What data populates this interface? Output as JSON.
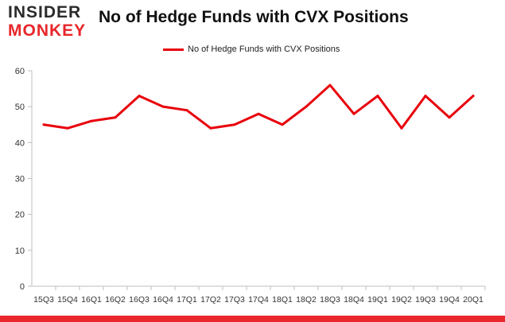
{
  "logo": {
    "line1": "INSIDER",
    "line2": "MONKEY"
  },
  "chart_data": {
    "type": "line",
    "title": "No of Hedge Funds with CVX Positions",
    "xlabel": "",
    "ylabel": "",
    "categories": [
      "15Q3",
      "15Q4",
      "16Q1",
      "16Q2",
      "16Q3",
      "16Q4",
      "17Q1",
      "17Q2",
      "17Q3",
      "17Q4",
      "18Q1",
      "18Q2",
      "18Q3",
      "18Q4",
      "19Q1",
      "19Q2",
      "19Q3",
      "19Q4",
      "20Q1"
    ],
    "series": [
      {
        "name": "No of Hedge Funds with CVX Positions",
        "values": [
          45,
          44,
          46,
          47,
          53,
          50,
          49,
          44,
          45,
          48,
          45,
          50,
          56,
          48,
          53,
          44,
          53,
          47,
          53
        ],
        "color": "#e8000b"
      }
    ],
    "ylim": [
      0,
      60
    ],
    "yticks": [
      0,
      10,
      20,
      30,
      40,
      50,
      60
    ],
    "grid": false,
    "legend": "top-center"
  },
  "colors": {
    "brand_red": "#e8262b",
    "series_red": "#e8000b",
    "axis": "#bfbfbf"
  }
}
